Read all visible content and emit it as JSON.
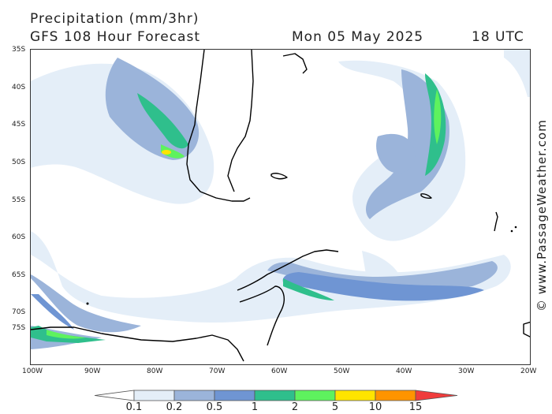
{
  "header": {
    "title": "Precipitation (mm/3hr)",
    "subtitle": "GFS 108 Hour Forecast",
    "date": "Mon 05 May 2025",
    "time": "18 UTC"
  },
  "copyright": "© www.PassageWeather.com",
  "lat_labels": [
    "35S",
    "40S",
    "45S",
    "50S",
    "55S",
    "60S",
    "65S",
    "70S",
    "75S"
  ],
  "lon_labels": [
    "100W",
    "90W",
    "80W",
    "70W",
    "60W",
    "50W",
    "40W",
    "30W",
    "20W"
  ],
  "legend": {
    "thresholds": [
      "0.1",
      "0.2",
      "0.5",
      "1",
      "2",
      "5",
      "10",
      "15"
    ],
    "colors": [
      "#ffffff",
      "#e4eef8",
      "#9bb4da",
      "#6f95d3",
      "#2fbf8c",
      "#5ef25e",
      "#ffe400",
      "#ff9400",
      "#f03c3c"
    ]
  }
}
